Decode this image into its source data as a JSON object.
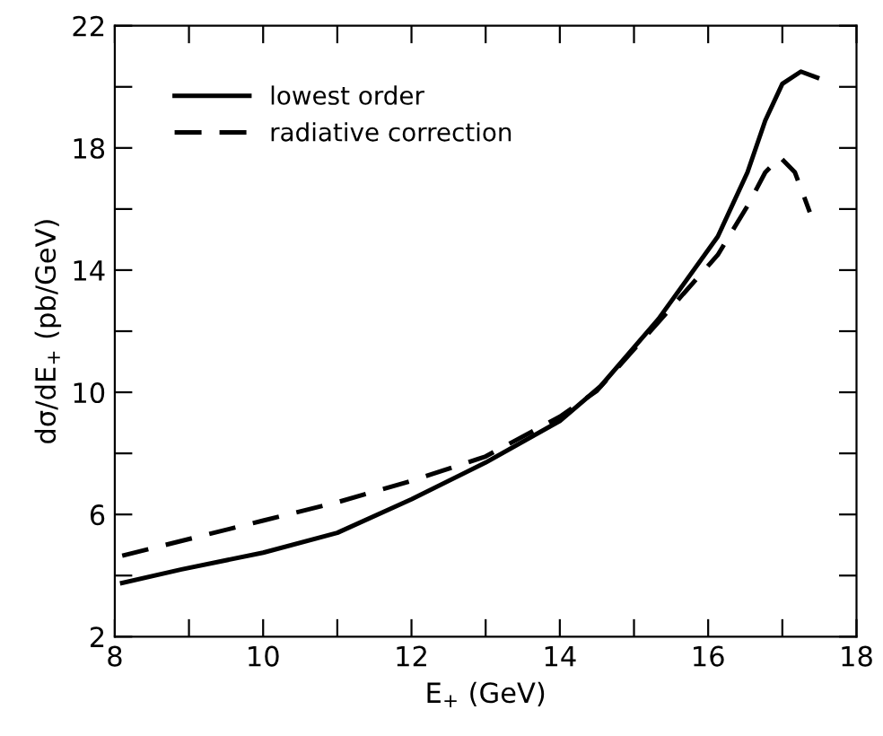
{
  "chart_data": {
    "type": "line",
    "xlabel": "E$_{+}$ (GeV)",
    "ylabel": "dσ/dE$_{+}$ (pb/GeV)",
    "xlim": [
      8,
      18
    ],
    "ylim": [
      2,
      22
    ],
    "xticks": [
      8,
      {
        "value": 9,
        "label": null
      },
      10,
      {
        "value": 11,
        "label": null
      },
      12,
      {
        "value": 13,
        "label": null
      },
      14,
      {
        "value": 15,
        "label": null
      },
      16,
      {
        "value": 17,
        "label": null
      },
      18
    ],
    "yticks": [
      2,
      {
        "value": 4,
        "label": null
      },
      6,
      {
        "value": 8,
        "label": null
      },
      10,
      {
        "value": 12,
        "label": null
      },
      14,
      {
        "value": 16,
        "label": null
      },
      18,
      {
        "value": 20,
        "label": null
      },
      22
    ],
    "grid": false,
    "legend": "top left",
    "series": [
      {
        "name": "lowest order",
        "color": "#000000",
        "line_style": "solid",
        "x": [
          8.1,
          8.9,
          10.0,
          11.0,
          12.0,
          13.0,
          14.0,
          14.55,
          15.33,
          16.13,
          16.53,
          16.77,
          17.0,
          17.25,
          17.47
        ],
        "values": [
          3.76,
          4.2,
          4.75,
          5.4,
          6.5,
          7.7,
          9.06,
          10.2,
          12.4,
          15.1,
          17.2,
          18.9,
          20.1,
          20.5,
          20.3
        ]
      },
      {
        "name": "radiative correction",
        "color": "#000000",
        "line_style": "dashed",
        "x": [
          8.1,
          10.0,
          11.0,
          12.0,
          13.0,
          14.0,
          14.5,
          15.33,
          16.13,
          16.53,
          16.77,
          16.97,
          17.17,
          17.37
        ],
        "values": [
          4.65,
          5.8,
          6.4,
          7.1,
          7.9,
          9.2,
          10.05,
          12.3,
          14.5,
          16.1,
          17.2,
          17.7,
          17.2,
          15.9
        ]
      }
    ]
  }
}
